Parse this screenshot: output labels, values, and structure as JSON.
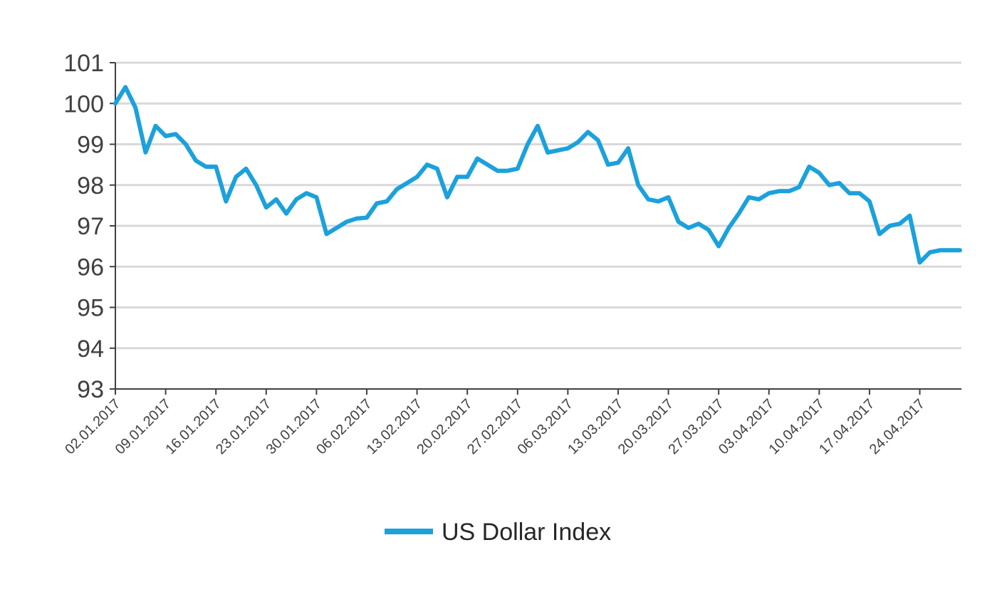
{
  "chart_data": {
    "type": "line",
    "title": "",
    "xlabel": "",
    "ylabel": "",
    "ylim": [
      93,
      101
    ],
    "yticks": [
      93,
      94,
      95,
      96,
      97,
      98,
      99,
      100,
      101
    ],
    "grid": true,
    "legend_position": "bottom-center",
    "xtick_labels": [
      "02.01.2017",
      "09.01.2017",
      "16.01.2017",
      "23.01.2017",
      "30.01.2017",
      "06.02.2017",
      "13.02.2017",
      "20.02.2017",
      "27.02.2017",
      "06.03.2017",
      "13.03.2017",
      "20.03.2017",
      "27.03.2017",
      "03.04.2017",
      "10.04.2017",
      "17.04.2017",
      "24.04.2017"
    ],
    "series": [
      {
        "name": "US Dollar Index",
        "color": "#1ba1dc",
        "x": [
          "02.01.2017",
          "03.01.2017",
          "04.01.2017",
          "05.01.2017",
          "06.01.2017",
          "09.01.2017",
          "10.01.2017",
          "11.01.2017",
          "12.01.2017",
          "13.01.2017",
          "16.01.2017",
          "17.01.2017",
          "18.01.2017",
          "19.01.2017",
          "20.01.2017",
          "23.01.2017",
          "24.01.2017",
          "25.01.2017",
          "26.01.2017",
          "27.01.2017",
          "30.01.2017",
          "31.01.2017",
          "01.02.2017",
          "02.02.2017",
          "03.02.2017",
          "06.02.2017",
          "07.02.2017",
          "08.02.2017",
          "09.02.2017",
          "10.02.2017",
          "13.02.2017",
          "14.02.2017",
          "15.02.2017",
          "16.02.2017",
          "17.02.2017",
          "20.02.2017",
          "21.02.2017",
          "22.02.2017",
          "23.02.2017",
          "24.02.2017",
          "27.02.2017",
          "28.02.2017",
          "01.03.2017",
          "02.03.2017",
          "03.03.2017",
          "06.03.2017",
          "07.03.2017",
          "08.03.2017",
          "09.03.2017",
          "10.03.2017",
          "13.03.2017",
          "14.03.2017",
          "15.03.2017",
          "16.03.2017",
          "17.03.2017",
          "20.03.2017",
          "21.03.2017",
          "22.03.2017",
          "23.03.2017",
          "24.03.2017",
          "27.03.2017",
          "28.03.2017",
          "29.03.2017",
          "30.03.2017",
          "31.03.2017",
          "03.04.2017",
          "04.04.2017",
          "05.04.2017",
          "06.04.2017",
          "07.04.2017",
          "10.04.2017",
          "11.04.2017",
          "12.04.2017",
          "13.04.2017",
          "14.04.2017",
          "17.04.2017",
          "18.04.2017",
          "19.04.2017",
          "20.04.2017",
          "21.04.2017",
          "24.04.2017",
          "25.04.2017",
          "26.04.2017",
          "27.04.2017",
          "28.04.2017"
        ],
        "values": [
          100.0,
          100.4,
          99.9,
          98.8,
          99.45,
          99.2,
          99.25,
          99.0,
          98.6,
          98.45,
          98.45,
          97.6,
          98.2,
          98.4,
          98.0,
          97.45,
          97.65,
          97.3,
          97.65,
          97.8,
          97.7,
          96.8,
          96.95,
          97.1,
          97.18,
          97.2,
          97.55,
          97.6,
          97.9,
          98.05,
          98.2,
          98.5,
          98.4,
          97.7,
          98.2,
          98.2,
          98.65,
          98.5,
          98.35,
          98.35,
          98.4,
          99.0,
          99.45,
          98.8,
          98.85,
          98.9,
          99.05,
          99.3,
          99.1,
          98.5,
          98.55,
          98.9,
          98.0,
          97.65,
          97.6,
          97.7,
          97.1,
          96.95,
          97.05,
          96.9,
          96.5,
          96.95,
          97.3,
          97.7,
          97.65,
          97.8,
          97.85,
          97.85,
          97.95,
          98.45,
          98.3,
          98.0,
          98.05,
          97.8,
          97.8,
          97.6,
          96.8,
          97.0,
          97.05,
          97.25,
          96.1,
          96.35,
          96.4,
          96.4,
          96.4
        ]
      }
    ]
  }
}
